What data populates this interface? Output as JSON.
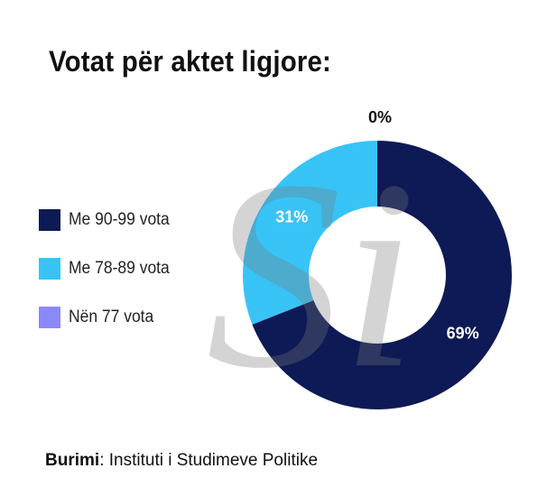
{
  "title": "Votat për aktet ligjore:",
  "chart_data": {
    "type": "pie",
    "style": "donut",
    "series": [
      {
        "name": "Me 90-99 vota",
        "value": 69,
        "label": "69%",
        "color": "#0d1a55"
      },
      {
        "name": "Me 78-89 vota",
        "value": 31,
        "label": "31%",
        "color": "#38c3f7"
      },
      {
        "name": "Nën 77 vota",
        "value": 0,
        "label": "0%",
        "color": "#8a89f7"
      }
    ],
    "legend": "left"
  },
  "watermark": "Si",
  "source": {
    "label": "Burimi",
    "text": " Instituti i Studimeve Politike"
  }
}
